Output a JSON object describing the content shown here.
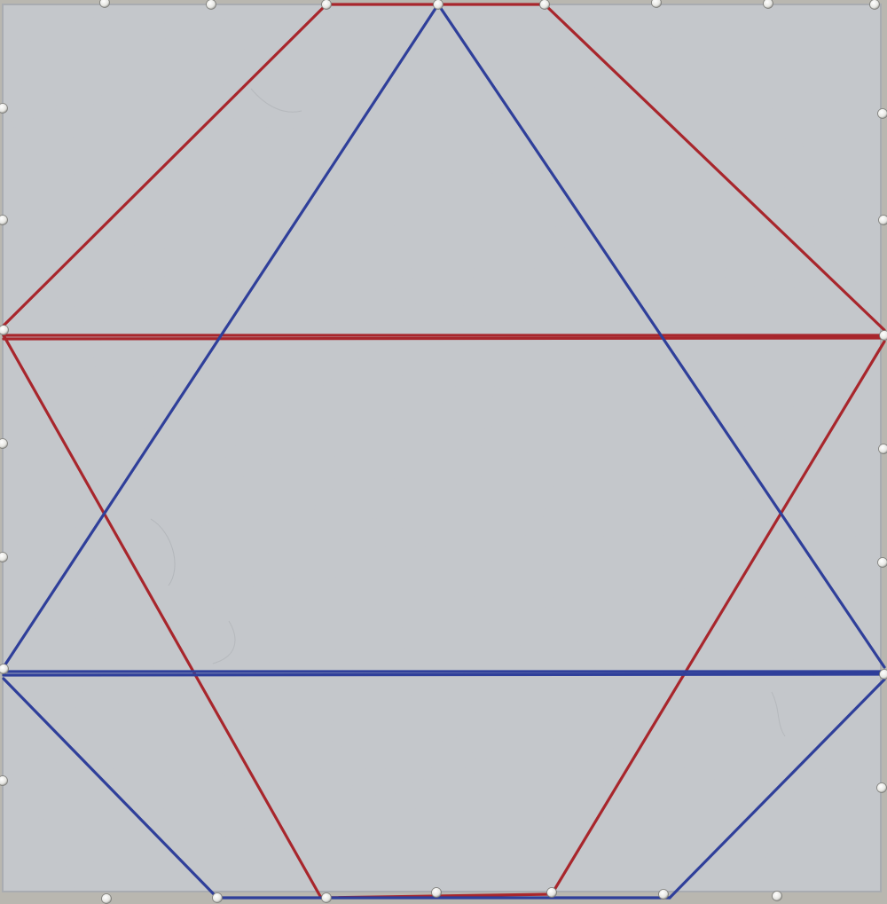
{
  "scene": {
    "subject": "string-art-geometry-board",
    "colors": {
      "board_frame": "#b9b7b0",
      "paper": "#c4c7cc",
      "red_thread": "#a8262c",
      "blue_thread": "#2f3f9a",
      "pin": "#f2f2f0"
    },
    "threads": {
      "red_count": 9,
      "blue_count": 7
    }
  }
}
